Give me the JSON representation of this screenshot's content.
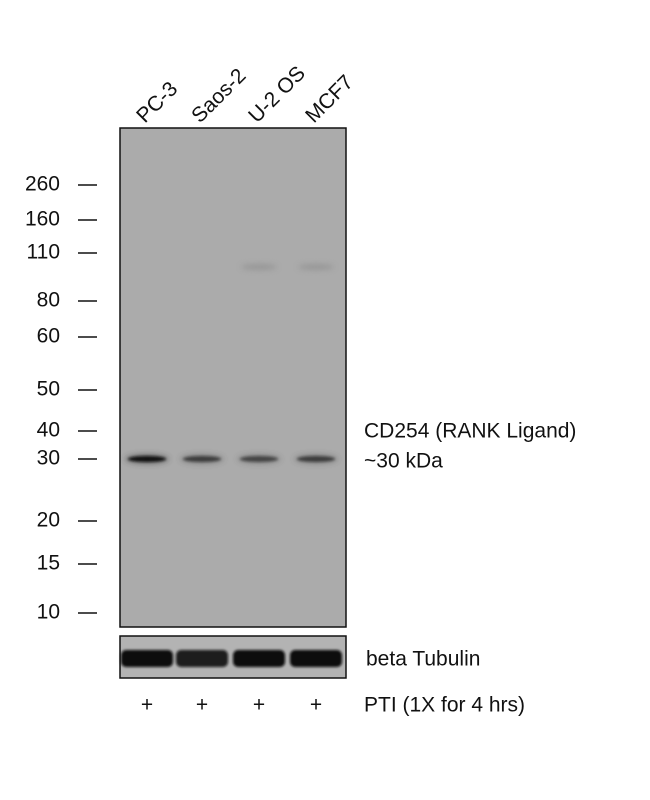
{
  "lanes": [
    "PC-3",
    "Saos-2",
    "U-2 OS",
    "MCF7"
  ],
  "markers": [
    "260",
    "160",
    "110",
    "80",
    "60",
    "50",
    "40",
    "30",
    "20",
    "15",
    "10"
  ],
  "target": {
    "name": "CD254 (RANK Ligand)",
    "size": "~30 kDa"
  },
  "loading_control": "beta Tubulin",
  "treatment": {
    "signs": [
      "+",
      "+",
      "+",
      "+"
    ],
    "label": "PTI (1X for 4 hrs)"
  }
}
